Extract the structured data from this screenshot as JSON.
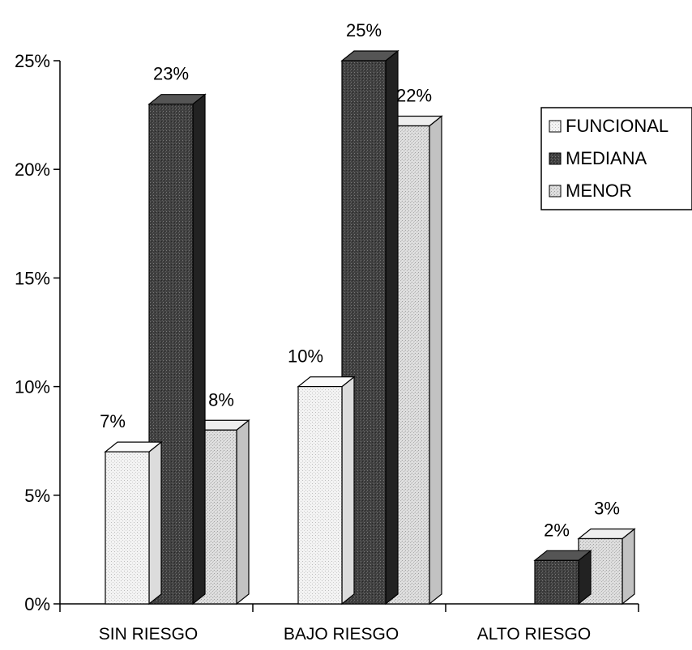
{
  "chart_data": {
    "type": "bar",
    "style": "3d-clustered",
    "title": "",
    "xlabel": "",
    "ylabel": "",
    "categories": [
      "SIN RIESGO",
      "BAJO RIESGO",
      "ALTO RIESGO"
    ],
    "series": [
      {
        "name": "FUNCIONAL",
        "values": [
          7,
          10,
          0
        ],
        "labels": [
          "7%",
          "10%",
          null
        ],
        "color": "#f0f0f0"
      },
      {
        "name": "MEDIANA",
        "values": [
          23,
          25,
          2
        ],
        "labels": [
          "23%",
          "25%",
          "2%"
        ],
        "color": "#3a3a3a"
      },
      {
        "name": "MENOR",
        "values": [
          8,
          22,
          3
        ],
        "labels": [
          "8%",
          "22%",
          "3%"
        ],
        "color": "#d6d6d6"
      }
    ],
    "ylim": [
      0,
      25
    ],
    "yticks": [
      0,
      5,
      10,
      15,
      20,
      25
    ],
    "ytick_labels": [
      "0%",
      "5%",
      "10%",
      "15%",
      "20%",
      "25%"
    ],
    "grid": false,
    "legend_position": "right"
  }
}
